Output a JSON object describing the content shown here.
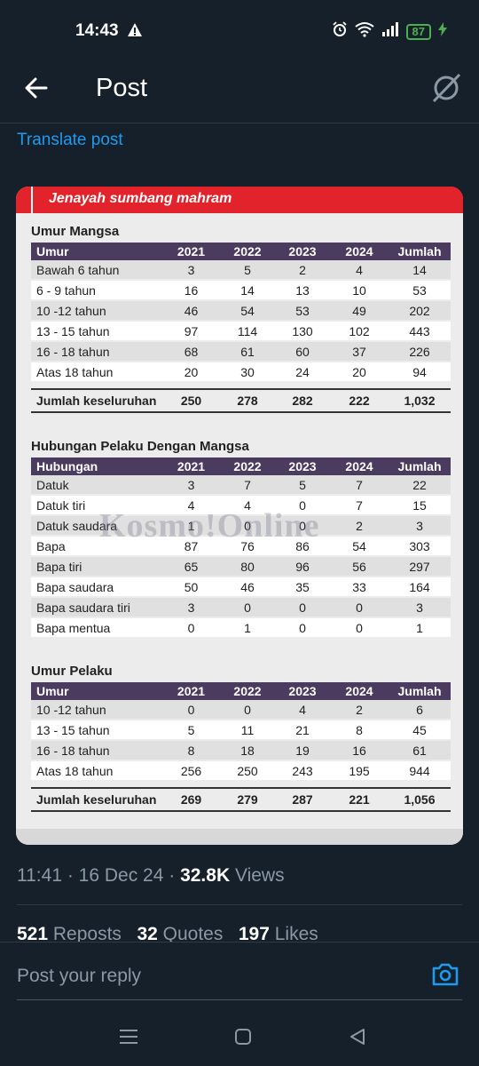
{
  "status": {
    "time": "14:43",
    "battery": "87"
  },
  "header": {
    "title": "Post"
  },
  "translate_label": "Translate post",
  "graphic": {
    "banner": "Jenayah sumbang mahram",
    "watermark": "Kosmo!Online",
    "sections": [
      {
        "title": "Umur Mangsa",
        "headers": [
          "Umur",
          "2021",
          "2022",
          "2023",
          "2024",
          "Jumlah"
        ],
        "rows": [
          [
            "Bawah 6 tahun",
            "3",
            "5",
            "2",
            "4",
            "14"
          ],
          [
            "6 - 9 tahun",
            "16",
            "14",
            "13",
            "10",
            "53"
          ],
          [
            "10 -12 tahun",
            "46",
            "54",
            "53",
            "49",
            "202"
          ],
          [
            "13 - 15 tahun",
            "97",
            "114",
            "130",
            "102",
            "443"
          ],
          [
            "16 - 18 tahun",
            "68",
            "61",
            "60",
            "37",
            "226"
          ],
          [
            "Atas 18 tahun",
            "20",
            "30",
            "24",
            "20",
            "94"
          ]
        ],
        "total": [
          "Jumlah keseluruhan",
          "250",
          "278",
          "282",
          "222",
          "1,032"
        ]
      },
      {
        "title": "Hubungan Pelaku Dengan Mangsa",
        "headers": [
          "Hubungan",
          "2021",
          "2022",
          "2023",
          "2024",
          "Jumlah"
        ],
        "rows": [
          [
            "Datuk",
            "3",
            "7",
            "5",
            "7",
            "22"
          ],
          [
            "Datuk tiri",
            "4",
            "4",
            "0",
            "7",
            "15"
          ],
          [
            "Datuk saudara",
            "1",
            "0",
            "0",
            "2",
            "3"
          ],
          [
            "Bapa",
            "87",
            "76",
            "86",
            "54",
            "303"
          ],
          [
            "Bapa tiri",
            "65",
            "80",
            "96",
            "56",
            "297"
          ],
          [
            "Bapa saudara",
            "50",
            "46",
            "35",
            "33",
            "164"
          ],
          [
            "Bapa saudara tiri",
            "3",
            "0",
            "0",
            "0",
            "3"
          ],
          [
            "Bapa mentua",
            "0",
            "1",
            "0",
            "0",
            "1"
          ]
        ]
      },
      {
        "title": "Umur Pelaku",
        "headers": [
          "Umur",
          "2021",
          "2022",
          "2023",
          "2024",
          "Jumlah"
        ],
        "rows": [
          [
            "10 -12 tahun",
            "0",
            "0",
            "4",
            "2",
            "6"
          ],
          [
            "13 - 15 tahun",
            "5",
            "11",
            "21",
            "8",
            "45"
          ],
          [
            "16 - 18 tahun",
            "8",
            "18",
            "19",
            "16",
            "61"
          ],
          [
            "Atas 18 tahun",
            "256",
            "250",
            "243",
            "195",
            "944"
          ]
        ],
        "total": [
          "Jumlah keseluruhan",
          "269",
          "279",
          "287",
          "221",
          "1,056"
        ]
      }
    ]
  },
  "meta": {
    "time": "11:41",
    "sep1": " · ",
    "date": "16 Dec 24",
    "sep2": " · ",
    "views_count": "32.8K",
    "views_label": " Views"
  },
  "stats": {
    "reposts_count": "521",
    "reposts_label": " Reposts",
    "quotes_count": "32",
    "quotes_label": " Quotes",
    "likes_count": "197",
    "likes_label": " Likes"
  },
  "reply": {
    "placeholder": "Post your reply"
  },
  "colors": {
    "accent": "#1d9bf0",
    "background": "#15202b",
    "banner": "#e3232b",
    "table_header": "#4a3b5f"
  }
}
